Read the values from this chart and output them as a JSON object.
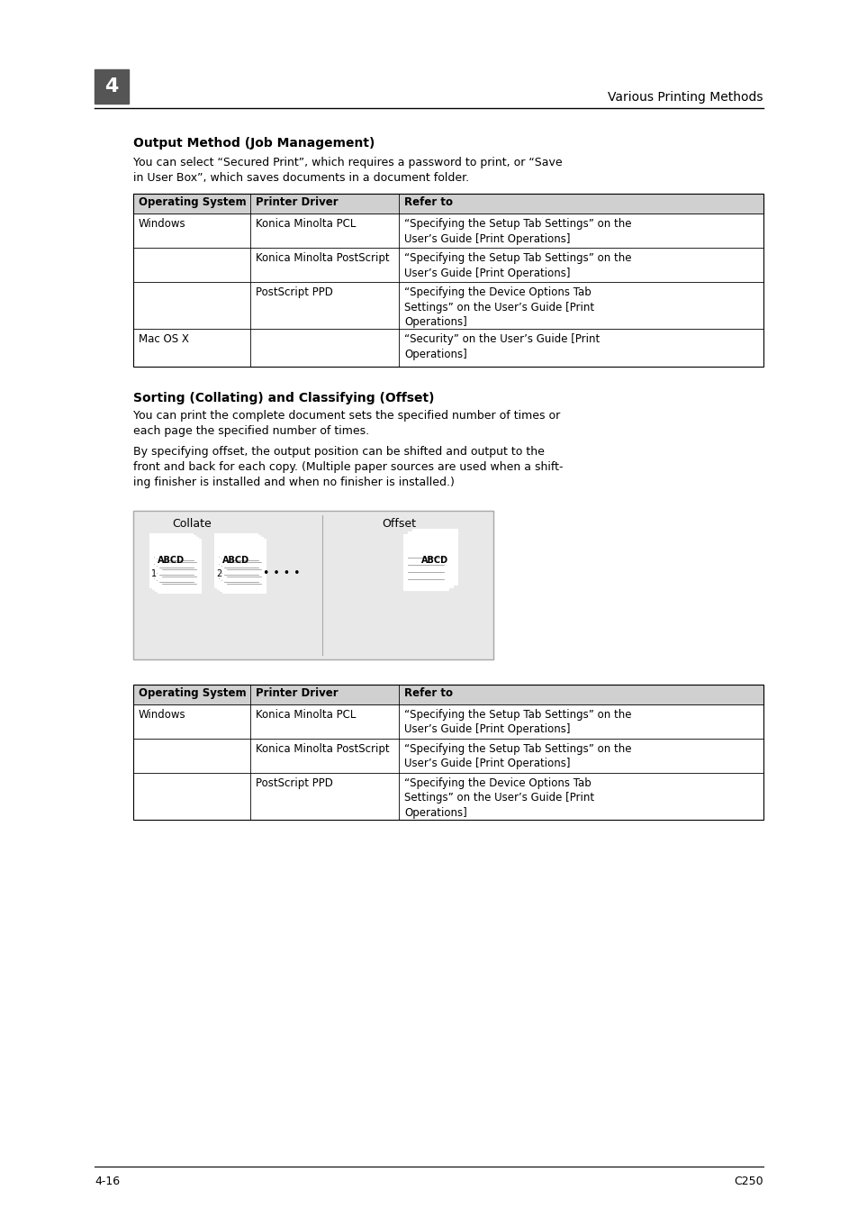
{
  "page_number": "4",
  "chapter_title": "Various Printing Methods",
  "section1_title": "Output Method (Job Management)",
  "section1_body": "You can select “Secured Print”, which requires a password to print, or “Save\nin User Box”, which saves documents in a document folder.",
  "table1_headers": [
    "Operating System",
    "Printer Driver",
    "Refer to"
  ],
  "table1_rows": [
    [
      "Windows",
      "Konica Minolta PCL",
      "“Specifying the Setup Tab Settings” on the\nUser’s Guide [Print Operations]"
    ],
    [
      "",
      "Konica Minolta PostScript",
      "“Specifying the Setup Tab Settings” on the\nUser’s Guide [Print Operations]"
    ],
    [
      "",
      "PostScript PPD",
      "“Specifying the Device Options Tab\nSettings” on the User’s Guide [Print\nOperations]"
    ],
    [
      "Mac OS X",
      "",
      "“Security” on the User’s Guide [Print\nOperations]"
    ]
  ],
  "section2_title": "Sorting (Collating) and Classifying (Offset)",
  "section2_body1": "You can print the complete document sets the specified number of times or\neach page the specified number of times.",
  "section2_body2": "By specifying offset, the output position can be shifted and output to the\nfront and back for each copy. (Multiple paper sources are used when a shift-\ning finisher is installed and when no finisher is installed.)",
  "collate_label": "Collate",
  "offset_label": "Offset",
  "table2_headers": [
    "Operating System",
    "Printer Driver",
    "Refer to"
  ],
  "table2_rows": [
    [
      "Windows",
      "Konica Minolta PCL",
      "“Specifying the Setup Tab Settings” on the\nUser’s Guide [Print Operations]"
    ],
    [
      "",
      "Konica Minolta PostScript",
      "“Specifying the Setup Tab Settings” on the\nUser’s Guide [Print Operations]"
    ],
    [
      "",
      "PostScript PPD",
      "“Specifying the Device Options Tab\nSettings” on the User’s Guide [Print\nOperations]"
    ]
  ],
  "footer_left": "4-16",
  "footer_right": "C250",
  "bg_color": "#ffffff",
  "text_color": "#000000",
  "header_bg": "#d0d0d0",
  "table_border": "#000000",
  "gray_box": "#e8e8e8"
}
